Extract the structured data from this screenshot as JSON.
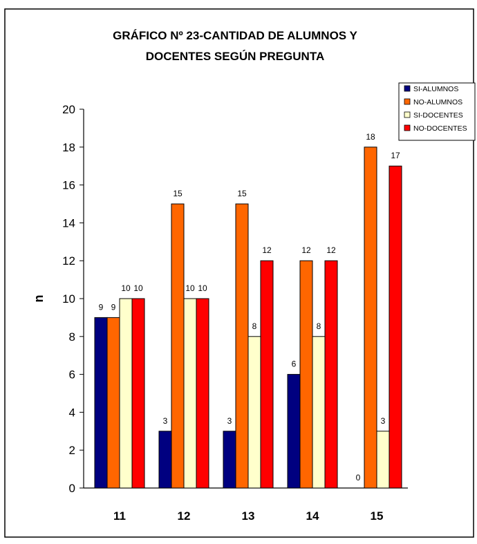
{
  "chart_data": {
    "type": "bar",
    "title_lines": [
      "GRÁFICO Nº 23-CANTIDAD DE ALUMNOS Y",
      "DOCENTES SEGÚN PREGUNTA"
    ],
    "xlabel": "",
    "ylabel": "n",
    "categories": [
      "11",
      "12",
      "13",
      "14",
      "15"
    ],
    "ylim": [
      0,
      20
    ],
    "yticks": [
      "0",
      "2",
      "4",
      "6",
      "8",
      "10",
      "12",
      "14",
      "16",
      "18",
      "20"
    ],
    "grid": false,
    "legend_position": "top-right",
    "series": [
      {
        "name": "SI-ALUMNOS",
        "color": "#000080",
        "values": [
          9,
          3,
          3,
          6,
          0
        ]
      },
      {
        "name": "NO-ALUMNOS",
        "color": "#FF6600",
        "values": [
          9,
          15,
          15,
          12,
          18
        ]
      },
      {
        "name": "SI-DOCENTES",
        "color": "#FFFFCC",
        "values": [
          10,
          10,
          8,
          8,
          3
        ]
      },
      {
        "name": "NO-DOCENTES",
        "color": "#FF0000",
        "values": [
          10,
          10,
          12,
          12,
          17
        ]
      }
    ]
  }
}
